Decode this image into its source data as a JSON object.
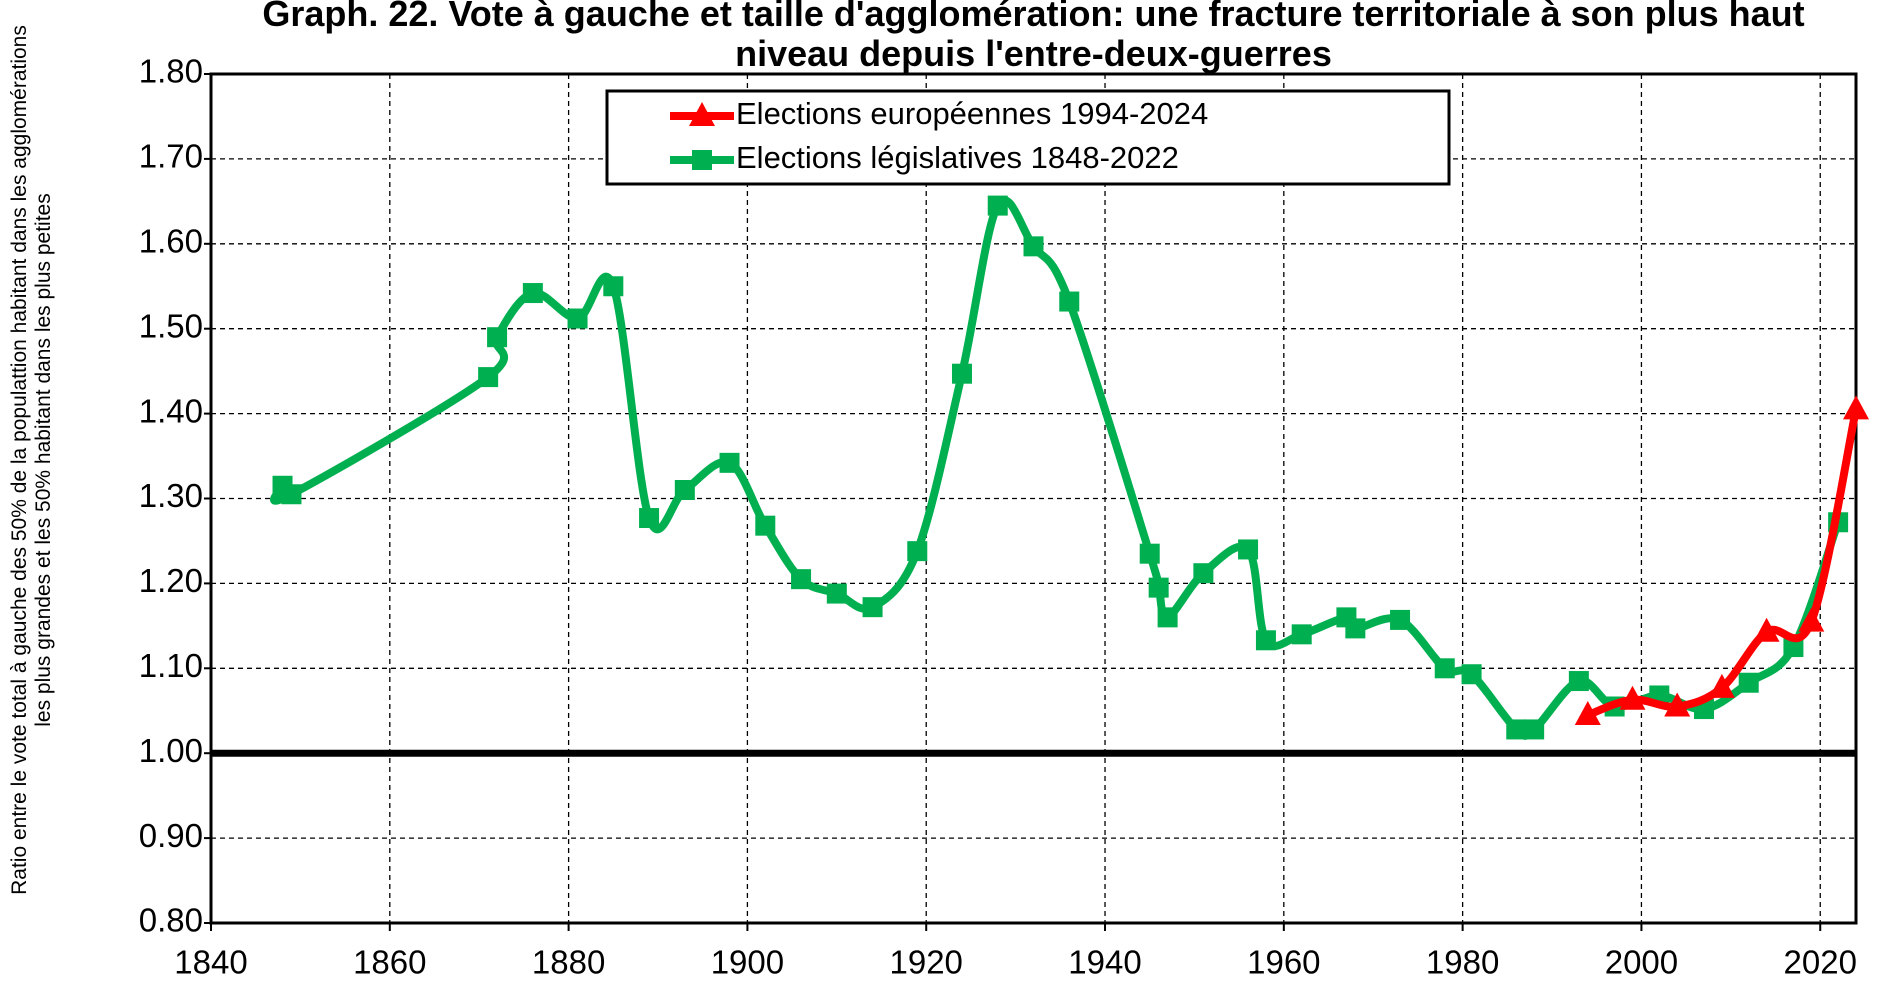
{
  "chart_data": {
    "type": "line",
    "title": "Graph. 22. Vote à gauche et taille d'agglomération: une fracture territoriale à son plus haut niveau depuis l'entre-deux-guerres",
    "y_label": "Ratio entre le vote total à gauche des 50% de la populattion habitant dans les agglomérations les plus grandes et les 50% habitant dans les plus petites",
    "series": [
      {
        "name": "Elections européennes 1994-2024",
        "color": "#ff0000",
        "marker": "triangle",
        "x": [
          1994,
          1999,
          2004,
          2009,
          2014,
          2019,
          2024
        ],
        "values": [
          1.045,
          1.063,
          1.055,
          1.077,
          1.143,
          1.155,
          1.405
        ]
      },
      {
        "name": "Elections législatives 1848-2022",
        "color": "#00b050",
        "marker": "square",
        "x": [
          1848,
          1849,
          1871,
          1872,
          1876,
          1881,
          1885,
          1889,
          1893,
          1898,
          1902,
          1906,
          1910,
          1914,
          1919,
          1924,
          1928,
          1932,
          1936,
          1945,
          1946,
          1947,
          1951,
          1956,
          1958,
          1962,
          1967,
          1968,
          1973,
          1978,
          1981,
          1986,
          1988,
          1993,
          1997,
          2002,
          2007,
          2012,
          2017,
          2022
        ],
        "values": [
          1.315,
          1.305,
          1.443,
          1.49,
          1.542,
          1.512,
          1.55,
          1.277,
          1.31,
          1.342,
          1.268,
          1.205,
          1.188,
          1.172,
          1.238,
          1.447,
          1.645,
          1.597,
          1.532,
          1.235,
          1.195,
          1.16,
          1.212,
          1.24,
          1.133,
          1.14,
          1.16,
          1.147,
          1.157,
          1.1,
          1.093,
          1.028,
          1.028,
          1.085,
          1.055,
          1.068,
          1.052,
          1.083,
          1.125,
          1.272
        ]
      }
    ],
    "xlim": [
      1840,
      2024
    ],
    "xticks": [
      1840,
      1860,
      1880,
      1900,
      1920,
      1940,
      1960,
      1980,
      2000,
      2020
    ],
    "ylim": [
      0.8,
      1.8
    ],
    "yticks": [
      {
        "value": 0.8,
        "label": "0.80"
      },
      {
        "value": 0.9,
        "label": "0.90"
      },
      {
        "value": 1.0,
        "label": "1.00"
      },
      {
        "value": 1.1,
        "label": "1.10"
      },
      {
        "value": 1.2,
        "label": "1.20"
      },
      {
        "value": 1.3,
        "label": "1.30"
      },
      {
        "value": 1.4,
        "label": "1.40"
      },
      {
        "value": 1.5,
        "label": "1.50"
      },
      {
        "value": 1.6,
        "label": "1.60"
      },
      {
        "value": 1.7,
        "label": "1.70"
      },
      {
        "value": 1.8,
        "label": "1.80"
      }
    ],
    "reference_line": 1.0,
    "grid": true,
    "legend": "top"
  }
}
